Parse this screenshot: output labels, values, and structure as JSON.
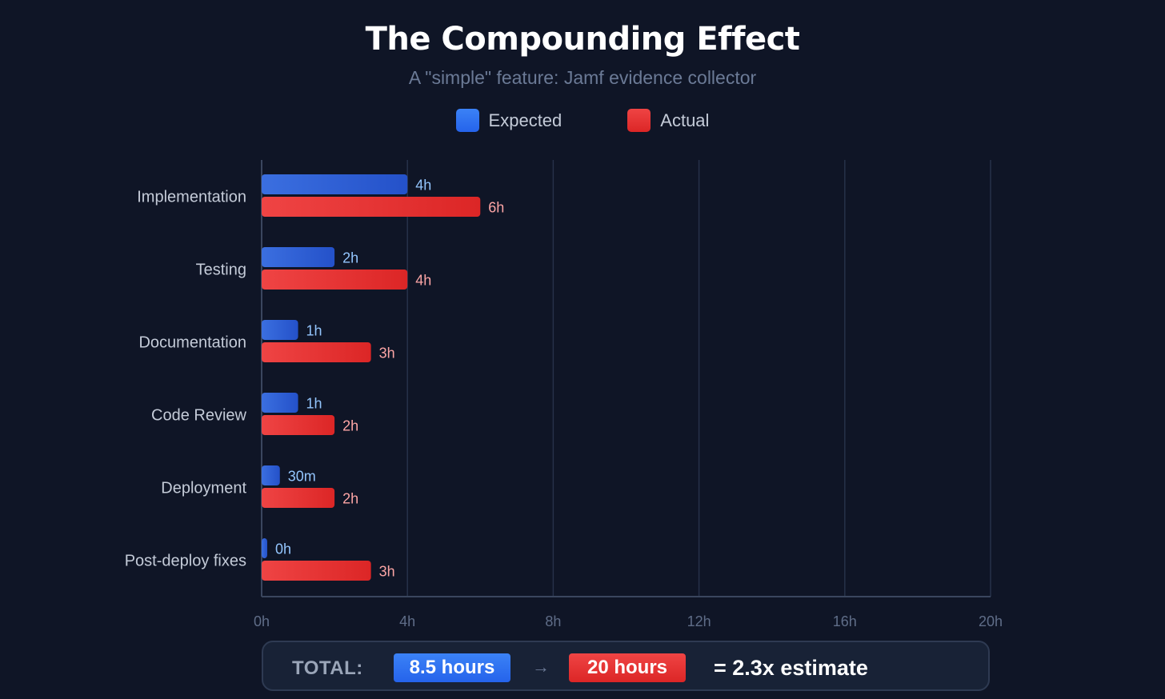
{
  "header": {
    "title": "The Compounding Effect",
    "subtitle": "A \"simple\" feature: Jamf evidence collector"
  },
  "legend": {
    "expected": "Expected",
    "actual": "Actual"
  },
  "colors": {
    "expected": "#2563eb",
    "actual": "#dc2626",
    "background": "#0f1526"
  },
  "chart_data": {
    "type": "bar",
    "orientation": "horizontal",
    "title": "The Compounding Effect",
    "subtitle": "A \"simple\" feature: Jamf evidence collector",
    "xlabel": "",
    "ylabel": "",
    "xlim": [
      0,
      20
    ],
    "unit": "hours",
    "grid": true,
    "legend_position": "top-center",
    "categories": [
      "Implementation",
      "Testing",
      "Documentation",
      "Code Review",
      "Deployment",
      "Post-deploy fixes"
    ],
    "x_ticks": [
      0,
      4,
      8,
      12,
      16,
      20
    ],
    "x_tick_labels": [
      "0h",
      "4h",
      "8h",
      "12h",
      "16h",
      "20h"
    ],
    "series": [
      {
        "name": "Expected",
        "values": [
          4,
          2,
          1,
          1,
          0.5,
          0
        ],
        "labels": [
          "4h",
          "2h",
          "1h",
          "1h",
          "30m",
          "0h"
        ]
      },
      {
        "name": "Actual",
        "values": [
          6,
          4,
          3,
          2,
          2,
          3
        ],
        "labels": [
          "6h",
          "4h",
          "3h",
          "2h",
          "2h",
          "3h"
        ]
      }
    ]
  },
  "summary": {
    "label": "TOTAL:",
    "expected": "8.5 hours",
    "arrow": "→",
    "actual": "20 hours",
    "result": "= 2.3x estimate"
  }
}
